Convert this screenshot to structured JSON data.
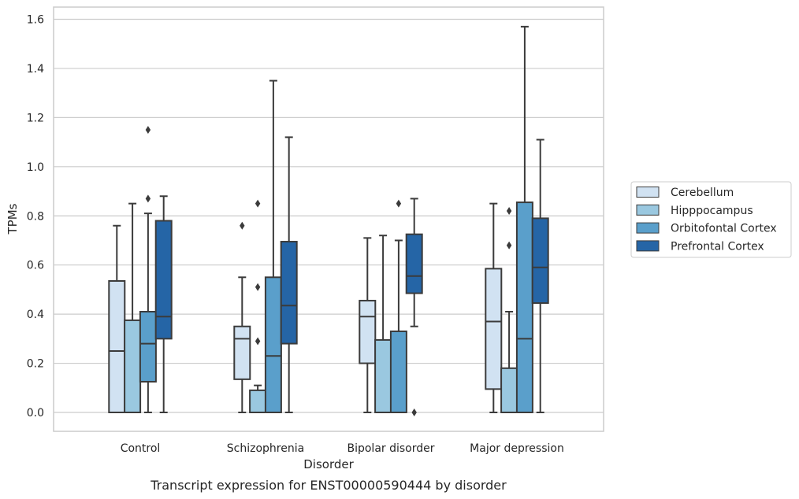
{
  "chart_data": {
    "type": "box",
    "caption": "Transcript expression for ENST00000590444 by disorder",
    "xlabel": "Disorder",
    "ylabel": "TPMs",
    "ylim": [
      -0.08,
      1.65
    ],
    "yticks": [
      0.0,
      0.2,
      0.4,
      0.6,
      0.8,
      1.0,
      1.2,
      1.4,
      1.6
    ],
    "ytick_labels": [
      "0.0",
      "0.2",
      "0.4",
      "0.6",
      "0.8",
      "1.0",
      "1.2",
      "1.4",
      "1.6"
    ],
    "grid": true,
    "legend_position": "right",
    "categories": [
      "Control",
      "Schizophrenia",
      "Bipolar disorder",
      "Major depression"
    ],
    "series": [
      {
        "name": "Cerebellum",
        "color": "#d1e2f2",
        "boxes": [
          {
            "whislo": 0.0,
            "q1": 0.0,
            "med": 0.25,
            "q3": 0.535,
            "whishi": 0.76,
            "fliers": []
          },
          {
            "whislo": 0.0,
            "q1": 0.135,
            "med": 0.3,
            "q3": 0.35,
            "whishi": 0.55,
            "fliers": [
              0.76
            ]
          },
          {
            "whislo": 0.0,
            "q1": 0.2,
            "med": 0.39,
            "q3": 0.455,
            "whishi": 0.71,
            "fliers": []
          },
          {
            "whislo": 0.0,
            "q1": 0.095,
            "med": 0.37,
            "q3": 0.585,
            "whishi": 0.85,
            "fliers": []
          }
        ]
      },
      {
        "name": "Hipppocampus",
        "color": "#9ac8e0",
        "boxes": [
          {
            "whislo": 0.0,
            "q1": 0.0,
            "med": 0.0,
            "q3": 0.375,
            "whishi": 0.85,
            "fliers": []
          },
          {
            "whislo": 0.0,
            "q1": 0.0,
            "med": 0.0,
            "q3": 0.09,
            "whishi": 0.11,
            "fliers": [
              0.29,
              0.51,
              0.85
            ]
          },
          {
            "whislo": 0.0,
            "q1": 0.0,
            "med": 0.0,
            "q3": 0.295,
            "whishi": 0.72,
            "fliers": []
          },
          {
            "whislo": 0.0,
            "q1": 0.0,
            "med": 0.0,
            "q3": 0.18,
            "whishi": 0.41,
            "fliers": [
              0.68,
              0.82
            ]
          }
        ]
      },
      {
        "name": "Orbitofontal Cortex",
        "color": "#5a9fcb",
        "boxes": [
          {
            "whislo": 0.0,
            "q1": 0.125,
            "med": 0.28,
            "q3": 0.41,
            "whishi": 0.81,
            "fliers": [
              0.87,
              1.15
            ]
          },
          {
            "whislo": 0.0,
            "q1": 0.0,
            "med": 0.23,
            "q3": 0.55,
            "whishi": 1.35,
            "fliers": []
          },
          {
            "whislo": 0.0,
            "q1": 0.0,
            "med": 0.0,
            "q3": 0.33,
            "whishi": 0.7,
            "fliers": [
              0.85
            ]
          },
          {
            "whislo": 0.0,
            "q1": 0.0,
            "med": 0.3,
            "q3": 0.855,
            "whishi": 1.57,
            "fliers": []
          }
        ]
      },
      {
        "name": "Prefrontal Cortex",
        "color": "#2565a6",
        "boxes": [
          {
            "whislo": 0.0,
            "q1": 0.3,
            "med": 0.39,
            "q3": 0.78,
            "whishi": 0.88,
            "fliers": []
          },
          {
            "whislo": 0.0,
            "q1": 0.28,
            "med": 0.435,
            "q3": 0.695,
            "whishi": 1.12,
            "fliers": []
          },
          {
            "whislo": 0.35,
            "q1": 0.485,
            "med": 0.555,
            "q3": 0.725,
            "whishi": 0.87,
            "fliers": [
              0.0
            ]
          },
          {
            "whislo": 0.0,
            "q1": 0.445,
            "med": 0.59,
            "q3": 0.79,
            "whishi": 1.11,
            "fliers": []
          }
        ]
      }
    ]
  }
}
